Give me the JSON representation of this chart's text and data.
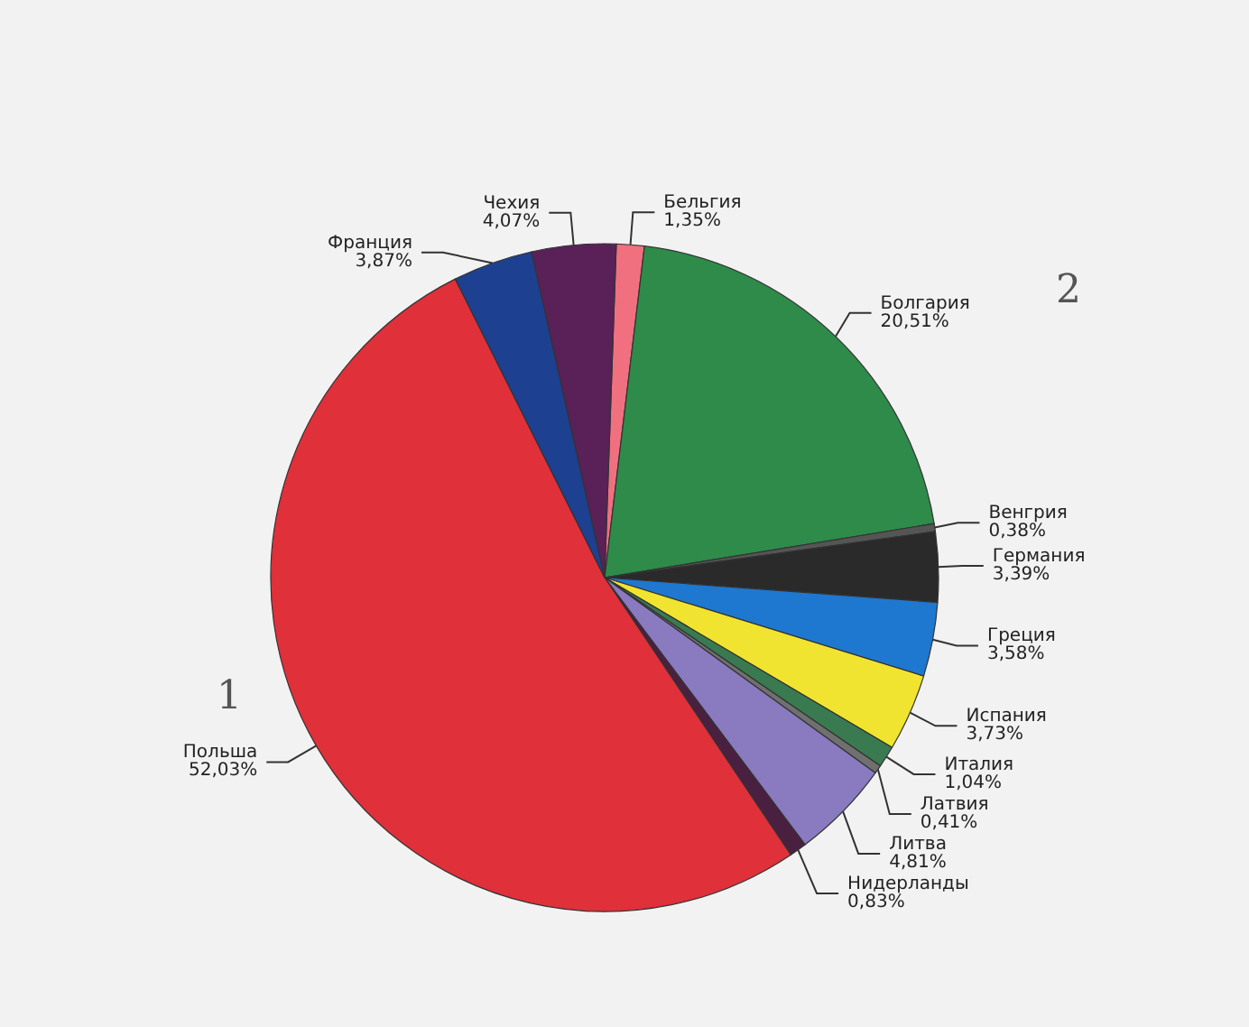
{
  "chart_data": {
    "type": "pie",
    "categories": [
      "Бельгия",
      "Болгария",
      "Венгрия",
      "Германия",
      "Греция",
      "Испания",
      "Италия",
      "Латвия",
      "Литва",
      "Нидерланды",
      "Польша",
      "Франция",
      "Чехия"
    ],
    "values": [
      1.35,
      20.51,
      0.38,
      3.39,
      3.58,
      3.73,
      1.04,
      0.41,
      4.81,
      0.83,
      52.03,
      3.87,
      4.07
    ],
    "colors": [
      "#f07080",
      "#2e8b4a",
      "#555555",
      "#2a2a2a",
      "#1e78d0",
      "#f0e430",
      "#3a7a50",
      "#707070",
      "#8a7ac0",
      "#4a2040",
      "#e0303a",
      "#1e4090",
      "#5a2058"
    ],
    "value_labels": [
      "1,35%",
      "20,51%",
      "0,38%",
      "3,39%",
      "3,58%",
      "3,73%",
      "1,04%",
      "0,41%",
      "4,81%",
      "0,83%",
      "52,03%",
      "3,87%",
      "4,07%"
    ],
    "annotations": [
      "2",
      "1"
    ]
  }
}
